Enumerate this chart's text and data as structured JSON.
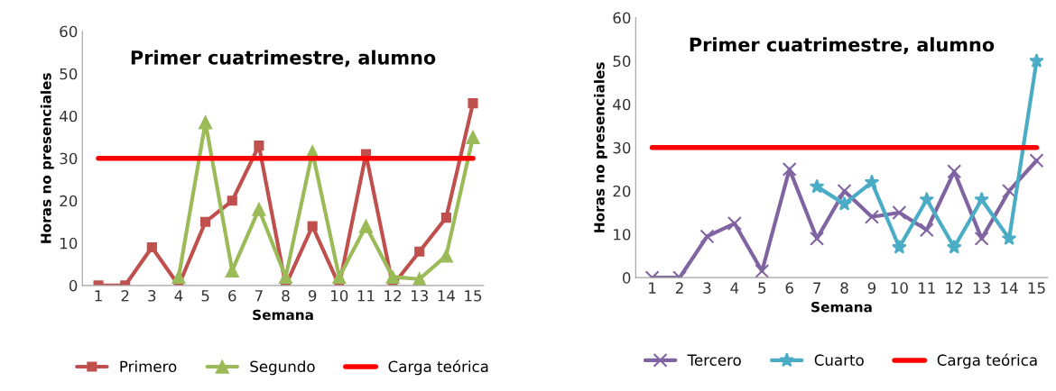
{
  "chart_data": [
    {
      "type": "line",
      "title": "Primer cuatrimestre, alumno",
      "xlabel": "Semana",
      "ylabel": "Horas no presenciales",
      "categories": [
        "1",
        "2",
        "3",
        "4",
        "5",
        "6",
        "7",
        "8",
        "9",
        "10",
        "11",
        "12",
        "13",
        "14",
        "15"
      ],
      "ylim": [
        0,
        60
      ],
      "yticks": [
        0,
        10,
        20,
        30,
        40,
        50,
        60
      ],
      "grid": false,
      "legend": "bottom",
      "series": [
        {
          "name": "Primero",
          "color": "#c0504d",
          "marker": "square",
          "values": [
            0,
            0,
            9,
            0,
            15,
            20,
            33,
            0,
            14,
            0,
            31,
            0,
            8,
            16,
            43
          ]
        },
        {
          "name": "Segundo",
          "color": "#9bbb59",
          "marker": "triangle",
          "values": [
            null,
            null,
            null,
            2,
            38.5,
            3.5,
            18,
            2,
            31.5,
            2,
            14,
            2,
            1.5,
            7,
            35
          ]
        },
        {
          "name": "Carga teórica",
          "color": "#ff0000",
          "marker": "none",
          "values": [
            30,
            30,
            30,
            30,
            30,
            30,
            30,
            30,
            30,
            30,
            30,
            30,
            30,
            30,
            30
          ]
        }
      ]
    },
    {
      "type": "line",
      "title": "Primer cuatrimestre, alumno",
      "xlabel": "Semana",
      "ylabel": "Horas no presenciales",
      "categories": [
        "1",
        "2",
        "3",
        "4",
        "5",
        "6",
        "7",
        "8",
        "9",
        "10",
        "11",
        "12",
        "13",
        "14",
        "15"
      ],
      "ylim": [
        0,
        60
      ],
      "yticks": [
        0,
        10,
        20,
        30,
        40,
        50,
        60
      ],
      "grid": false,
      "legend": "bottom",
      "series": [
        {
          "name": "Tercero",
          "color": "#8064a2",
          "marker": "cross",
          "values": [
            0,
            0,
            9.5,
            12.5,
            1.5,
            25,
            9,
            20,
            14,
            15,
            11,
            24.5,
            9,
            20,
            27
          ]
        },
        {
          "name": "Cuarto",
          "color": "#4bacc6",
          "marker": "star",
          "values": [
            null,
            null,
            null,
            null,
            null,
            null,
            21,
            17,
            22,
            7,
            18,
            7,
            18,
            9,
            50
          ]
        },
        {
          "name": "Carga teórica",
          "color": "#ff0000",
          "marker": "none",
          "values": [
            30,
            30,
            30,
            30,
            30,
            30,
            30,
            30,
            30,
            30,
            30,
            30,
            30,
            30,
            30
          ]
        }
      ]
    }
  ]
}
